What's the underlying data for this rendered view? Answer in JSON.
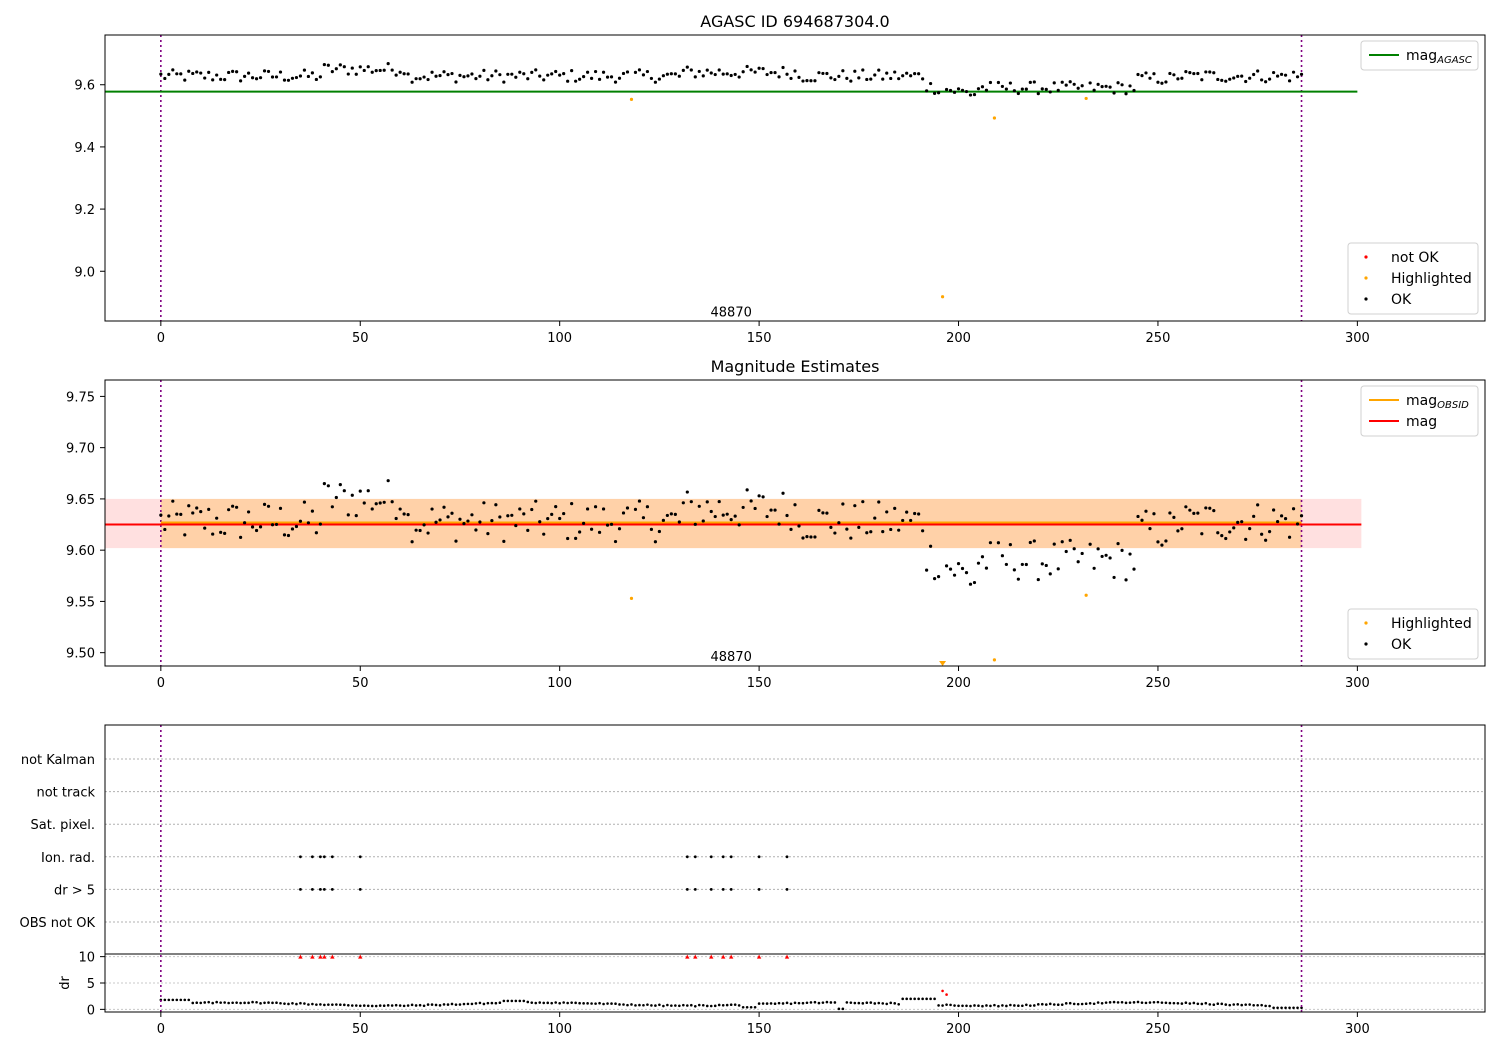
{
  "chart_data": [
    {
      "type": "scatter",
      "title": "AGASC ID 694687304.0",
      "xlim": [
        -14,
        332
      ],
      "ylim": [
        8.84,
        9.76
      ],
      "xticks": [
        0,
        50,
        100,
        150,
        200,
        250,
        300
      ],
      "yticks": [
        9.0,
        9.2,
        9.4,
        9.6
      ],
      "ytick_labels": [
        "9.0",
        "9.2",
        "9.4",
        "9.6"
      ],
      "grid": false,
      "annotation": {
        "text": "48870",
        "x": 143,
        "y": 8.855
      },
      "vlines": [
        {
          "x": 0,
          "color": "#800080",
          "style": "dotted"
        },
        {
          "x": 286,
          "color": "#800080",
          "style": "dotted"
        }
      ],
      "hlines": [
        {
          "name": "mag_AGASC",
          "y": 9.578,
          "x0": -14,
          "x1": 300,
          "color": "#008000"
        }
      ],
      "legend_top": {
        "placement": "top-right",
        "entries": [
          {
            "label": "mag",
            "sub": "AGASC",
            "color": "#008000",
            "kind": "line"
          }
        ]
      },
      "legend_bottom": {
        "placement": "bottom-right",
        "entries": [
          {
            "label": "not OK",
            "color": "#ff0000",
            "kind": "point"
          },
          {
            "label": "Highlighted",
            "color": "#ffa500",
            "kind": "point"
          },
          {
            "label": "OK",
            "color": "#000000",
            "kind": "point"
          }
        ]
      },
      "series": [
        {
          "name": "Highlighted",
          "color": "#ffa500",
          "points": [
            [
              118,
              9.553
            ],
            [
              196,
              8.918
            ],
            [
              209,
              9.493
            ],
            [
              232,
              9.556
            ]
          ]
        }
      ],
      "ok_series": "OK"
    },
    {
      "type": "scatter",
      "title": "Magnitude Estimates",
      "xlim": [
        -14,
        332
      ],
      "ylim": [
        9.487,
        9.766
      ],
      "xticks": [
        0,
        50,
        100,
        150,
        200,
        250,
        300
      ],
      "yticks": [
        9.5,
        9.55,
        9.6,
        9.65,
        9.7,
        9.75
      ],
      "ytick_labels": [
        "9.50",
        "9.55",
        "9.60",
        "9.65",
        "9.70",
        "9.75"
      ],
      "grid": false,
      "annotation": {
        "text": "48870",
        "x": 143,
        "y": 9.492
      },
      "vlines": [
        {
          "x": 0,
          "color": "#800080",
          "style": "dotted"
        },
        {
          "x": 286,
          "color": "#800080",
          "style": "dotted"
        }
      ],
      "bands": [
        {
          "y0": 9.602,
          "y1": 9.65,
          "x0": -14,
          "x1": 301,
          "color": "#ff0000",
          "opacity": 0.12
        },
        {
          "y0": 9.602,
          "y1": 9.65,
          "x0": 0,
          "x1": 286,
          "color": "#ffa500",
          "opacity": 0.25
        }
      ],
      "hlines": [
        {
          "name": "mag_OBSID",
          "y": 9.626,
          "x0": 0,
          "x1": 286,
          "color": "#ffa500"
        },
        {
          "name": "mag",
          "y": 9.626,
          "x0": -14,
          "x1": 301,
          "color": "#ff0000"
        }
      ],
      "legend_top": {
        "placement": "top-right",
        "entries": [
          {
            "label": "mag",
            "sub": "OBSID",
            "color": "#ffa500",
            "kind": "line"
          },
          {
            "label": "mag",
            "sub": "",
            "color": "#ff0000",
            "kind": "line"
          }
        ]
      },
      "legend_bottom": {
        "placement": "bottom-right",
        "entries": [
          {
            "label": "Highlighted",
            "color": "#ffa500",
            "kind": "point"
          },
          {
            "label": "OK",
            "color": "#000000",
            "kind": "point"
          }
        ]
      },
      "series": [
        {
          "name": "Highlighted",
          "color": "#ffa500",
          "points": [
            [
              118,
              9.553
            ],
            [
              209,
              9.493
            ],
            [
              232,
              9.556
            ]
          ]
        },
        {
          "name": "Highlighted (below axis)",
          "color": "#ffa500",
          "marker": "triangle-down",
          "points": [
            [
              196,
              9.489
            ]
          ]
        }
      ],
      "ok_series": "OK"
    },
    {
      "type": "scatter",
      "title": "",
      "xlim": [
        -14,
        332
      ],
      "xticks": [
        0,
        50,
        100,
        150,
        200,
        250,
        300
      ],
      "category_rows": [
        "not Kalman",
        "not track",
        "Sat. pixel.",
        "Ion. rad.",
        "dr > 5",
        "OBS not OK"
      ],
      "flagged_x": [
        35,
        38,
        40,
        41,
        43,
        50,
        132,
        134,
        138,
        141,
        143,
        150,
        157
      ],
      "flag_rows": [
        "Ion. rad.",
        "dr > 5"
      ],
      "vlines": [
        {
          "x": 0,
          "color": "#800080",
          "style": "dotted"
        },
        {
          "x": 286,
          "color": "#800080",
          "style": "dotted"
        }
      ],
      "dr_panel": {
        "ylabel": "dr",
        "ylim": [
          -0.5,
          10.5
        ],
        "yticks": [
          0,
          5,
          10
        ],
        "ytick_labels": [
          "0",
          "5",
          "10"
        ],
        "clipped_value": 10,
        "clipped_marker_color": "#ff0000",
        "outlier": {
          "x": 196,
          "y": 3.5,
          "color": "#ff0000"
        },
        "outlier2": {
          "x": 197,
          "y": 2.8,
          "color": "#ff0000"
        },
        "dr_series": "dr"
      }
    }
  ]
}
